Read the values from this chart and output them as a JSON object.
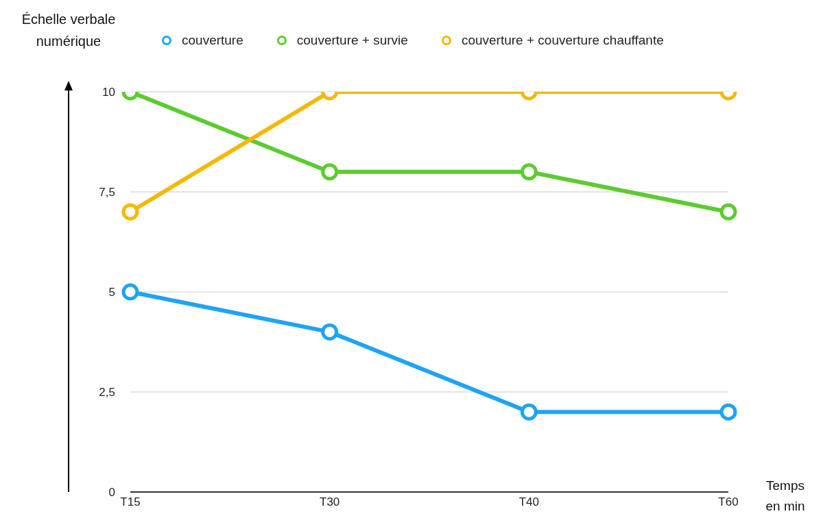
{
  "chart_data": {
    "type": "line",
    "xlabel": "Temps\nen min",
    "ylabel": "Échelle verbale\nnumérique",
    "categories": [
      "T15",
      "T30",
      "T40",
      "T60"
    ],
    "series": [
      {
        "name": "couverture",
        "color": "#1ea4f5",
        "values": [
          5,
          4,
          2,
          2
        ]
      },
      {
        "name": "couverture + survie",
        "color": "#5ccb2f",
        "values": [
          10,
          8,
          8,
          7
        ]
      },
      {
        "name": "couverture + couverture chauffante",
        "color": "#f5b800",
        "values": [
          7,
          10,
          10,
          10
        ]
      }
    ],
    "ylim": [
      0,
      10
    ],
    "yticks": [
      0,
      {
        "value": 2.5,
        "label": "2,5"
      },
      5,
      {
        "value": 7.5,
        "label": "7,5"
      },
      10
    ],
    "grid": "y",
    "legend": "top",
    "marker": "circle",
    "line_style": "solid"
  }
}
